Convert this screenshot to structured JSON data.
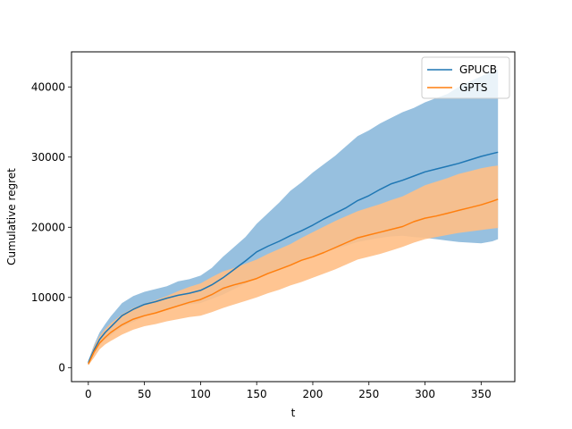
{
  "chart_data": {
    "type": "line",
    "title": "",
    "xlabel": "t",
    "ylabel": "Cumulative regret",
    "xlim": [
      -15,
      380
    ],
    "ylim": [
      -2000,
      45000
    ],
    "xticks": [
      0,
      50,
      100,
      150,
      200,
      250,
      300,
      350
    ],
    "yticks": [
      0,
      10000,
      20000,
      30000,
      40000
    ],
    "grid": false,
    "legend_position": "top-right",
    "x": [
      0,
      5,
      10,
      15,
      20,
      30,
      40,
      50,
      60,
      70,
      80,
      90,
      100,
      110,
      120,
      130,
      140,
      150,
      160,
      170,
      180,
      190,
      200,
      210,
      220,
      230,
      240,
      250,
      260,
      270,
      280,
      290,
      300,
      310,
      320,
      330,
      340,
      350,
      360,
      365
    ],
    "series": [
      {
        "name": "GPUCB",
        "color": "#1f77b4",
        "band_color": "#8cb9db",
        "mean": [
          700,
          2500,
          4000,
          5000,
          5800,
          7400,
          8300,
          9000,
          9400,
          9900,
          10300,
          10600,
          11000,
          11800,
          12800,
          14000,
          15200,
          16500,
          17300,
          18000,
          18800,
          19500,
          20300,
          21200,
          22000,
          22800,
          23800,
          24500,
          25400,
          26200,
          26700,
          27300,
          27900,
          28300,
          28700,
          29100,
          29600,
          30100,
          30500,
          30700
        ],
        "upper": [
          1000,
          3200,
          5000,
          6200,
          7300,
          9200,
          10200,
          10800,
          11200,
          11600,
          12300,
          12600,
          13100,
          14200,
          15800,
          17200,
          18600,
          20500,
          22000,
          23500,
          25200,
          26400,
          27800,
          29000,
          30200,
          31600,
          33000,
          33800,
          34800,
          35600,
          36400,
          37000,
          37800,
          38400,
          39000,
          40000,
          40800,
          41500,
          42300,
          42500
        ],
        "lower": [
          500,
          1900,
          3200,
          4000,
          4600,
          5800,
          6500,
          7300,
          7800,
          8300,
          8700,
          9000,
          9200,
          9800,
          10400,
          11200,
          12000,
          12800,
          13400,
          14000,
          14700,
          15300,
          15900,
          16400,
          16900,
          17400,
          17900,
          18200,
          18500,
          18700,
          18800,
          18600,
          18500,
          18300,
          18100,
          17900,
          17800,
          17700,
          18000,
          18300
        ]
      },
      {
        "name": "GPTS",
        "color": "#ff7f0e",
        "band_color": "#ffbf86",
        "mean": [
          500,
          2200,
          3500,
          4300,
          5000,
          6100,
          6900,
          7400,
          7800,
          8300,
          8800,
          9300,
          9700,
          10400,
          11300,
          11800,
          12200,
          12700,
          13400,
          14000,
          14600,
          15300,
          15800,
          16400,
          17100,
          17800,
          18500,
          18900,
          19300,
          19700,
          20100,
          20800,
          21300,
          21600,
          22000,
          22400,
          22800,
          23200,
          23700,
          24000
        ],
        "upper": [
          800,
          3000,
          4500,
          5500,
          6300,
          7600,
          8500,
          9100,
          9600,
          10200,
          10900,
          11500,
          12000,
          12900,
          13700,
          14200,
          14800,
          15400,
          16200,
          16900,
          17600,
          18500,
          19300,
          20100,
          20900,
          21600,
          22300,
          22800,
          23300,
          23900,
          24400,
          25200,
          26000,
          26500,
          27000,
          27600,
          28000,
          28400,
          28700,
          28800
        ],
        "lower": [
          300,
          1400,
          2600,
          3300,
          3800,
          4700,
          5400,
          5900,
          6200,
          6600,
          6900,
          7200,
          7400,
          7900,
          8500,
          9000,
          9500,
          10000,
          10600,
          11100,
          11700,
          12200,
          12800,
          13400,
          14000,
          14700,
          15400,
          15800,
          16200,
          16700,
          17200,
          17800,
          18300,
          18600,
          18900,
          19200,
          19400,
          19600,
          19800,
          19900
        ]
      }
    ]
  }
}
